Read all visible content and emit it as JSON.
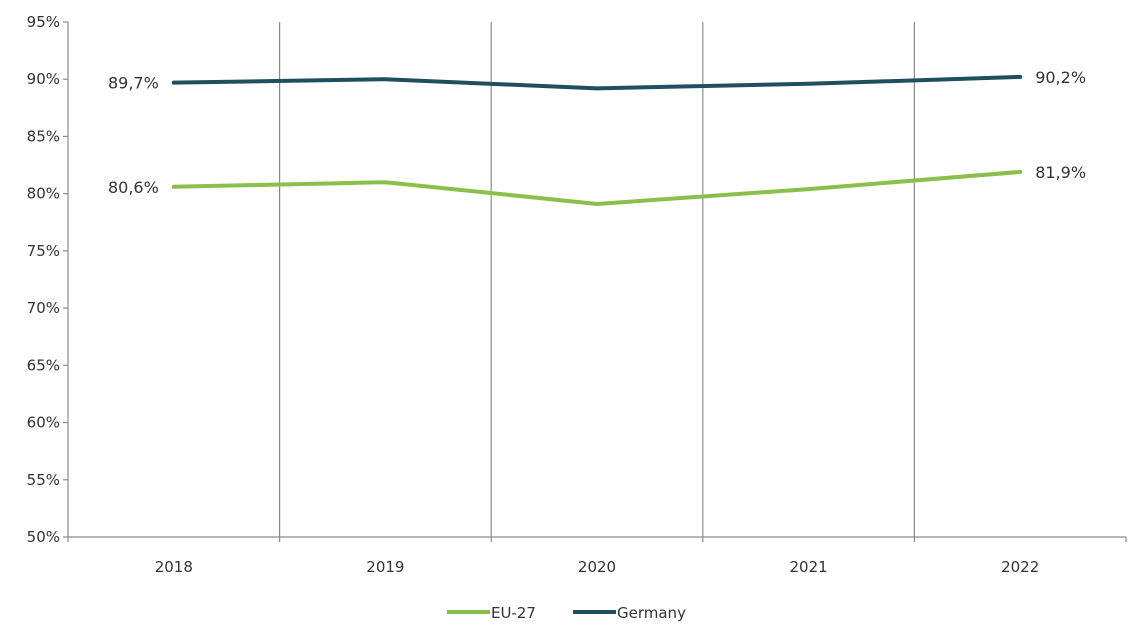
{
  "chart_data": {
    "type": "line",
    "categories": [
      "2018",
      "2019",
      "2020",
      "2021",
      "2022"
    ],
    "ylim": [
      50,
      95
    ],
    "yticks": [
      50,
      55,
      60,
      65,
      70,
      75,
      80,
      85,
      90,
      95
    ],
    "ytick_labels": [
      "50%",
      "55%",
      "60%",
      "65%",
      "70%",
      "75%",
      "80%",
      "85%",
      "90%",
      "95%"
    ],
    "grid": "vertical",
    "legend_position": "bottom",
    "series": [
      {
        "name": "EU-27",
        "color": "#8bbf4c",
        "values": [
          80.6,
          81.0,
          79.1,
          80.4,
          81.9
        ],
        "labels": [
          {
            "index": 0,
            "text": "80,6%"
          },
          {
            "index": 4,
            "text": "81,9%"
          }
        ]
      },
      {
        "name": "Germany",
        "color": "#1f4e5f",
        "values": [
          89.7,
          90.0,
          89.2,
          89.6,
          90.2
        ],
        "labels": [
          {
            "index": 0,
            "text": "89,7%"
          },
          {
            "index": 4,
            "text": "90,2%"
          }
        ]
      }
    ]
  }
}
